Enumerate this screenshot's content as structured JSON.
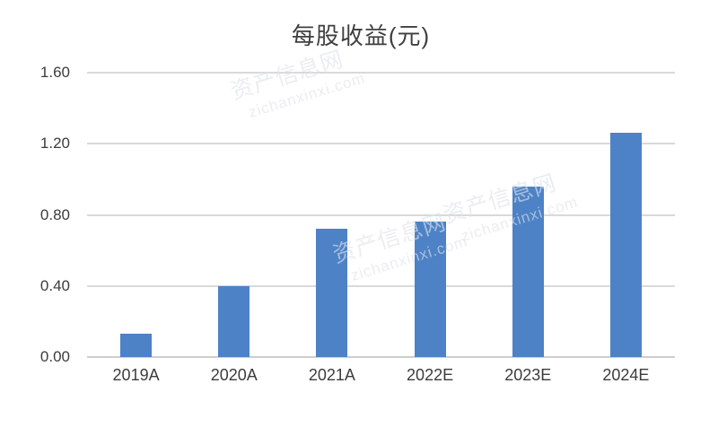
{
  "chart_data": {
    "type": "bar",
    "title": "每股收益(元)",
    "categories": [
      "2019A",
      "2020A",
      "2021A",
      "2022E",
      "2023E",
      "2024E"
    ],
    "values": [
      0.13,
      0.4,
      0.72,
      0.76,
      0.96,
      1.26
    ],
    "xlabel": "",
    "ylabel": "",
    "ylim": [
      0,
      1.6
    ],
    "yticks": [
      {
        "value": 1.6,
        "label": "1.60"
      },
      {
        "value": 1.2,
        "label": "1.20"
      },
      {
        "value": 0.8,
        "label": "0.80"
      },
      {
        "value": 0.4,
        "label": "0.40"
      },
      {
        "value": 0.0,
        "label": "0.00"
      }
    ],
    "grid": true,
    "legend": false,
    "bar_color": "#4D82C6",
    "gridline_color": "#D9D9D9",
    "axis_line_color": "#CDCDCD",
    "tick_label_color": "#3C3C3C",
    "title_color": "#3F3F3F"
  },
  "watermark": {
    "line1": "资产信息网",
    "line2": "zichanxinxi.com"
  }
}
